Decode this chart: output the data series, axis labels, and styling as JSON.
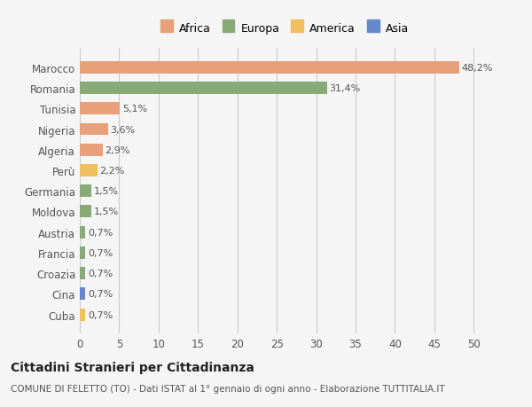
{
  "countries": [
    "Cuba",
    "Cina",
    "Croazia",
    "Francia",
    "Austria",
    "Moldova",
    "Germania",
    "Perù",
    "Algeria",
    "Nigeria",
    "Tunisia",
    "Romania",
    "Marocco"
  ],
  "values": [
    0.7,
    0.7,
    0.7,
    0.7,
    0.7,
    1.5,
    1.5,
    2.2,
    2.9,
    3.6,
    5.1,
    31.4,
    48.2
  ],
  "labels": [
    "0,7%",
    "0,7%",
    "0,7%",
    "0,7%",
    "0,7%",
    "1,5%",
    "1,5%",
    "2,2%",
    "2,9%",
    "3,6%",
    "5,1%",
    "31,4%",
    "48,2%"
  ],
  "colors": [
    "#f0c060",
    "#6688cc",
    "#88aa77",
    "#88aa77",
    "#88aa77",
    "#88aa77",
    "#88aa77",
    "#f0c060",
    "#e8a07a",
    "#e8a07a",
    "#e8a07a",
    "#88aa77",
    "#e8a07a"
  ],
  "continent": [
    "America",
    "Asia",
    "Europa",
    "Europa",
    "Europa",
    "Europa",
    "Europa",
    "America",
    "Africa",
    "Africa",
    "Africa",
    "Europa",
    "Africa"
  ],
  "legend_labels": [
    "Africa",
    "Europa",
    "America",
    "Asia"
  ],
  "legend_colors": [
    "#e8a07a",
    "#88aa77",
    "#f0c060",
    "#6688cc"
  ],
  "title": "Cittadini Stranieri per Cittadinanza",
  "subtitle": "COMUNE DI FELETTO (TO) - Dati ISTAT al 1° gennaio di ogni anno - Elaborazione TUTTITALIA.IT",
  "xlim": [
    0,
    52
  ],
  "xticks": [
    0,
    5,
    10,
    15,
    20,
    25,
    30,
    35,
    40,
    45,
    50
  ],
  "bg_color": "#f5f5f5",
  "bar_bg_color": "#ffffff"
}
